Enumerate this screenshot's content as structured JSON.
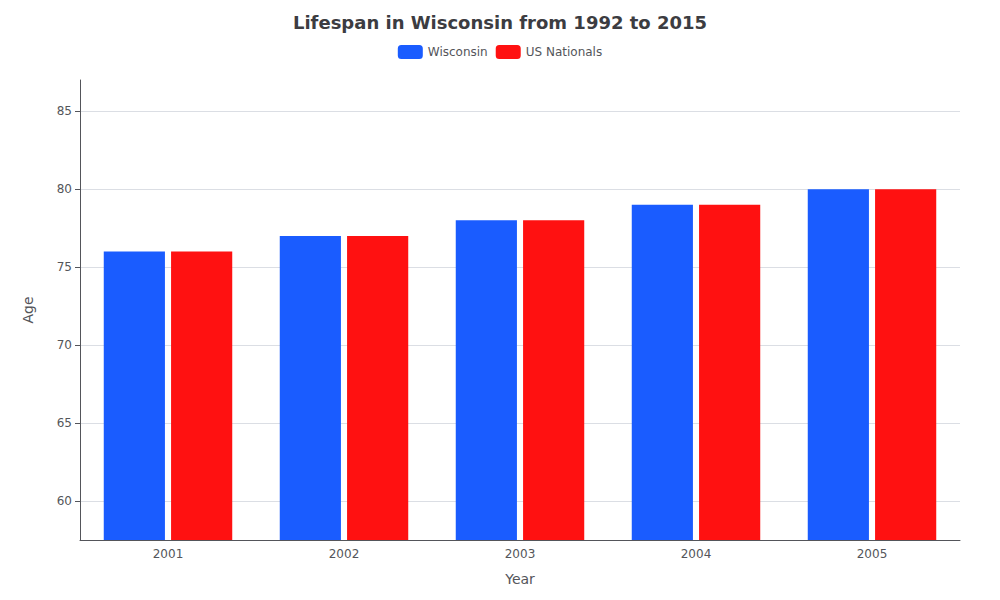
{
  "chart_data": {
    "type": "bar",
    "title": "Lifespan in Wisconsin from 1992 to 2015",
    "xlabel": "Year",
    "ylabel": "Age",
    "categories": [
      "2001",
      "2002",
      "2003",
      "2004",
      "2005"
    ],
    "series": [
      {
        "name": "Wisconsin",
        "color": "#1a5cff",
        "values": [
          76,
          77,
          78,
          79,
          80
        ]
      },
      {
        "name": "US Nationals",
        "color": "#ff1111",
        "values": [
          76,
          77,
          78,
          79,
          80
        ]
      }
    ],
    "ylim": [
      57.5,
      87
    ],
    "yticks": [
      60,
      65,
      70,
      75,
      80,
      85
    ],
    "grid": true,
    "legend": "upper center"
  }
}
